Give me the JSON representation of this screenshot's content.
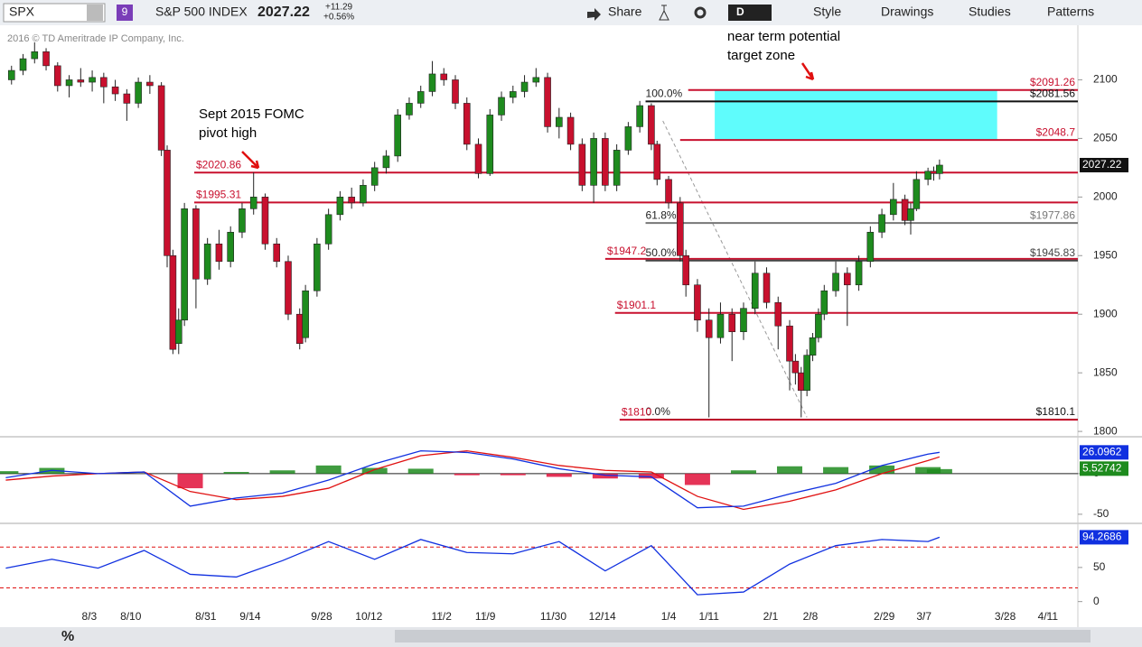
{
  "header": {
    "symbol": "SPX",
    "badge": "9",
    "name": "S&P 500 INDEX",
    "last": "2027.22",
    "change": "+11.29",
    "change_pct": "+0.56%",
    "share": "Share",
    "period": "D",
    "style": "Style",
    "drawings": "Drawings",
    "studies": "Studies",
    "patterns": "Patterns",
    "copyright": "2016 © TD Ameritrade IP Company, Inc.",
    "percent": "%"
  },
  "chart_data": [
    {
      "type": "candlestick",
      "ylim": [
        1797,
        2145
      ],
      "xlim": [
        -1,
        186
      ],
      "yticks": [
        1800,
        1850,
        1900,
        1950,
        2000,
        2050,
        2100
      ],
      "xticks": [
        {
          "value": 14.5,
          "label": "8/3"
        },
        {
          "value": 21.7,
          "label": "8/10"
        },
        {
          "value": 34.7,
          "label": "8/31"
        },
        {
          "value": 42.4,
          "label": "9/14"
        },
        {
          "value": 54.8,
          "label": "9/28"
        },
        {
          "value": 63,
          "label": "10/12"
        },
        {
          "value": 75.6,
          "label": "11/2"
        },
        {
          "value": 83.2,
          "label": "11/9"
        },
        {
          "value": 95,
          "label": "11/30"
        },
        {
          "value": 103.5,
          "label": "12/14"
        },
        {
          "value": 115,
          "label": "1/4"
        },
        {
          "value": 122,
          "label": "1/11"
        },
        {
          "value": 132.7,
          "label": "2/1"
        },
        {
          "value": 139.6,
          "label": "2/8"
        },
        {
          "value": 152.4,
          "label": "2/29"
        },
        {
          "value": 159.3,
          "label": "3/7"
        },
        {
          "value": 173.4,
          "label": "3/28"
        },
        {
          "value": 180.8,
          "label": "4/11"
        }
      ],
      "up_color": "#1e8b1e",
      "down_color": "#c8102e",
      "x": [
        1,
        3,
        5,
        7,
        9,
        11,
        13,
        15,
        17,
        19,
        21,
        23,
        25,
        27,
        28,
        29,
        30,
        31,
        33,
        35,
        37,
        39,
        41,
        43,
        45,
        47,
        49,
        51,
        52,
        54,
        56,
        58,
        60,
        62,
        64,
        66,
        68,
        70,
        72,
        74,
        76,
        78,
        80,
        82,
        84,
        86,
        88,
        90,
        92,
        94,
        96,
        98,
        100,
        102,
        104,
        106,
        108,
        110,
        112,
        113,
        115,
        117,
        118,
        120,
        122,
        124,
        126,
        128,
        130,
        132,
        134,
        136,
        137,
        138,
        139,
        140,
        141,
        142,
        144,
        146,
        148,
        150,
        152,
        154,
        156,
        157,
        158,
        160,
        161,
        162
      ],
      "open": [
        2100,
        2108,
        2118,
        2124,
        2112,
        2095,
        2100,
        2098,
        2102,
        2094,
        2088,
        2080,
        2098,
        2095,
        2040,
        1950,
        1875,
        1895,
        1990,
        1930,
        1960,
        1945,
        1970,
        1990,
        2000,
        1960,
        1945,
        1900,
        1880,
        1920,
        1960,
        1985,
        2000,
        1995,
        2010,
        2025,
        2035,
        2070,
        2080,
        2090,
        2105,
        2100,
        2080,
        2045,
        2020,
        2070,
        2085,
        2090,
        2098,
        2102,
        2060,
        2068,
        2045,
        2010,
        2050,
        2010,
        2040,
        2060,
        2078,
        2045,
        2015,
        1995,
        1950,
        1925,
        1895,
        1880,
        1900,
        1885,
        1905,
        1935,
        1910,
        1890,
        1860,
        1850,
        1835,
        1865,
        1880,
        1900,
        1920,
        1935,
        1925,
        1945,
        1970,
        1985,
        1998,
        1980,
        1990,
        2015,
        2022,
        2020
      ],
      "high": [
        2112,
        2122,
        2132,
        2127,
        2115,
        2104,
        2110,
        2108,
        2106,
        2100,
        2092,
        2102,
        2104,
        2098,
        2044,
        1955,
        1905,
        1995,
        1993,
        1965,
        1972,
        1975,
        1995,
        2021,
        2003,
        1965,
        1950,
        1905,
        1925,
        1965,
        1990,
        2005,
        2008,
        2015,
        2030,
        2040,
        2075,
        2085,
        2095,
        2116,
        2110,
        2104,
        2085,
        2050,
        2075,
        2090,
        2095,
        2104,
        2110,
        2106,
        2076,
        2072,
        2050,
        2055,
        2055,
        2045,
        2064,
        2082,
        2080,
        2048,
        2018,
        2000,
        1955,
        1930,
        1905,
        1910,
        1905,
        1910,
        1945,
        1940,
        1915,
        1895,
        1866,
        1855,
        1870,
        1884,
        1905,
        1925,
        1945,
        1940,
        1950,
        1975,
        1990,
        2012,
        2002,
        1995,
        2022,
        2025,
        2026,
        2032
      ],
      "low": [
        2096,
        2104,
        2114,
        2108,
        2090,
        2085,
        2094,
        2090,
        2080,
        2082,
        2065,
        2076,
        2088,
        2035,
        1940,
        1866,
        1866,
        1890,
        1905,
        1925,
        1938,
        1940,
        1965,
        1985,
        1955,
        1940,
        1895,
        1870,
        1876,
        1915,
        1955,
        1980,
        1990,
        1992,
        2005,
        2020,
        2030,
        2066,
        2076,
        2086,
        2095,
        2075,
        2040,
        2016,
        2018,
        2065,
        2080,
        2085,
        2094,
        2055,
        2050,
        2040,
        2005,
        1995,
        2005,
        2005,
        2036,
        2055,
        2040,
        2010,
        1990,
        1945,
        1915,
        1885,
        1812,
        1875,
        1860,
        1878,
        1900,
        1905,
        1870,
        1835,
        1840,
        1812,
        1830,
        1860,
        1876,
        1895,
        1915,
        1890,
        1920,
        1940,
        1965,
        1980,
        1976,
        1968,
        1988,
        2010,
        2014,
        2015
      ],
      "close": [
        2108,
        2118,
        2124,
        2112,
        2095,
        2100,
        2098,
        2102,
        2094,
        2088,
        2080,
        2098,
        2095,
        2040,
        1950,
        1870,
        1895,
        1990,
        1930,
        1960,
        1945,
        1970,
        1990,
        2000,
        1960,
        1945,
        1900,
        1875,
        1920,
        1960,
        1985,
        2000,
        1995,
        2010,
        2025,
        2035,
        2070,
        2080,
        2090,
        2105,
        2100,
        2080,
        2045,
        2020,
        2070,
        2085,
        2090,
        2098,
        2102,
        2060,
        2068,
        2045,
        2010,
        2050,
        2010,
        2040,
        2060,
        2078,
        2045,
        2015,
        1995,
        1950,
        1925,
        1895,
        1880,
        1900,
        1885,
        1905,
        1935,
        1910,
        1890,
        1860,
        1850,
        1835,
        1865,
        1880,
        1900,
        1920,
        1935,
        1925,
        1945,
        1970,
        1985,
        1998,
        1980,
        1990,
        2015,
        2022,
        2020,
        2027.22
      ],
      "levels": [
        {
          "value": 2091.26,
          "label": "$2091.26",
          "color": "#c8102e",
          "start": 118.4,
          "side": "right"
        },
        {
          "value": 2081.56,
          "label": "$2081.56",
          "color": "#111111",
          "start": 111,
          "side": "right",
          "fib": "100.0%"
        },
        {
          "value": 2048.7,
          "label": "$2048.7",
          "color": "#c8102e",
          "start": 117,
          "side": "right"
        },
        {
          "value": 2020.86,
          "label": "$2020.86",
          "color": "#c8102e",
          "start": 32.7,
          "side": "left"
        },
        {
          "value": 1995.31,
          "label": "$1995.31",
          "color": "#c8102e",
          "start": 32.7,
          "side": "left"
        },
        {
          "value": 1977.86,
          "label": "$1977.86",
          "color": "#777777",
          "start": 111,
          "side": "right",
          "fib": "61.8%"
        },
        {
          "value": 1947.2,
          "label": "$1947.2",
          "color": "#c8102e",
          "start": 104,
          "side": "left"
        },
        {
          "value": 1945.83,
          "label": "$1945.83",
          "color": "#444444",
          "start": 111,
          "side": "right",
          "fib": "50.0%"
        },
        {
          "value": 1901.1,
          "label": "$1901.1",
          "color": "#c8102e",
          "start": 105.7,
          "side": "left"
        },
        {
          "value": 1810.1,
          "label": "$1810.1",
          "color": "#111111",
          "start": 111,
          "side": "right",
          "fib": "0.0%"
        },
        {
          "value": 1810,
          "label": "$1810",
          "color": "#c8102e",
          "start": 106.5,
          "side": "left"
        }
      ],
      "zone": {
        "x": [
          123,
          172
        ],
        "y": [
          2048.7,
          2091.26
        ],
        "color": "#5ffcfc"
      },
      "trendline": {
        "x": [
          114,
          139
        ],
        "y": [
          2065,
          1812
        ]
      },
      "annotations": [
        "near term potential",
        "target zone",
        "Sept 2015 FOMC",
        "pivot high"
      ]
    },
    {
      "type": "macd",
      "ylim": [
        -59,
        42
      ],
      "yticks": [
        0,
        -50
      ],
      "x": [
        0,
        8,
        16,
        24,
        32,
        40,
        48,
        56,
        64,
        72,
        80,
        88,
        96,
        104,
        112,
        120,
        128,
        136,
        144,
        152,
        160,
        162
      ],
      "series": [
        {
          "name": "MACD",
          "color": "#1030e0",
          "values": [
            -5,
            4,
            0,
            2,
            -40,
            -30,
            -24,
            -8,
            12,
            28,
            26,
            18,
            6,
            -2,
            -4,
            -42,
            -40,
            -25,
            -12,
            10,
            24,
            26.0962
          ]
        },
        {
          "name": "Signal",
          "color": "#e01010",
          "values": [
            -8,
            -3,
            0,
            2,
            -22,
            -32,
            -28,
            -18,
            5,
            22,
            28,
            20,
            10,
            4,
            2,
            -28,
            -44,
            -34,
            -20,
            0,
            16,
            20.5688
          ]
        },
        {
          "name": "Diff",
          "color": "#1e8b1e",
          "neg_color": "#e0103a",
          "values": [
            3,
            7,
            0,
            0,
            -18,
            2,
            4,
            10,
            7,
            6,
            -2,
            -2,
            -4,
            -6,
            -6,
            -14,
            4,
            9,
            8,
            10,
            8,
            5.52742
          ]
        }
      ]
    },
    {
      "type": "stochastic",
      "ylim": [
        -15,
        112
      ],
      "yticks": [
        0,
        50
      ],
      "levels": [
        80,
        20
      ],
      "x": [
        0,
        8,
        16,
        24,
        32,
        40,
        48,
        56,
        64,
        72,
        80,
        88,
        96,
        104,
        112,
        120,
        128,
        136,
        144,
        152,
        160,
        162
      ],
      "series": [
        {
          "name": "Stoch",
          "color": "#1030e0",
          "values": [
            49,
            62,
            49,
            75,
            40,
            36,
            60,
            88,
            62,
            91,
            72,
            70,
            88,
            45,
            82,
            10,
            14,
            55,
            82,
            91,
            88,
            94.2686
          ]
        }
      ]
    }
  ]
}
